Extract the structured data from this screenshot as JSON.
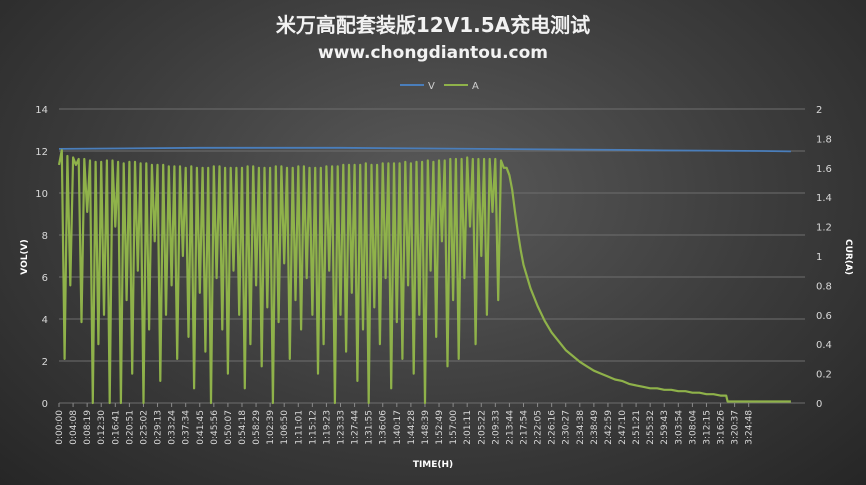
{
  "chart_data": {
    "type": "line",
    "title": "米万高配套装版12V1.5A充电测试",
    "subtitle": "www.chongdiantou.com",
    "xlabel": "TIME(H)",
    "ylabel_left": "VOL(V)",
    "ylabel_right": "CUR(A)",
    "ylim_left": [
      0,
      14
    ],
    "ylim_right": [
      0,
      2
    ],
    "yticks_left": [
      "0",
      "2",
      "4",
      "6",
      "8",
      "10",
      "12",
      "14"
    ],
    "yticks_right": [
      "0",
      "0.2",
      "0.4",
      "0.6",
      "0.8",
      "1",
      "1.2",
      "1.4",
      "1.6",
      "1.8",
      "2"
    ],
    "grid": true,
    "legend_position": "top-center",
    "x_tick_labels": [
      "0:00:00",
      "0:04:08",
      "0:08:19",
      "0:12:30",
      "0:16:41",
      "0:20:51",
      "0:25:02",
      "0:29:13",
      "0:33:24",
      "0:37:34",
      "0:41:45",
      "0:45:56",
      "0:50:07",
      "0:54:18",
      "0:58:29",
      "1:02:39",
      "1:06:50",
      "1:11:01",
      "1:15:12",
      "1:19:23",
      "1:23:33",
      "1:27:44",
      "1:31:55",
      "1:36:06",
      "1:40:17",
      "1:44:28",
      "1:48:39",
      "1:52:49",
      "1:57:00",
      "2:01:11",
      "2:05:22",
      "2:09:33",
      "2:13:44",
      "2:17:54",
      "2:22:05",
      "2:26:16",
      "2:30:27",
      "2:34:38",
      "2:38:49",
      "2:42:59",
      "2:47:10",
      "2:51:21",
      "2:55:32",
      "2:59:43",
      "3:03:54",
      "3:08:04",
      "3:12:15",
      "3:16:26",
      "3:20:37",
      "3:24:48"
    ],
    "series": [
      {
        "name": "V",
        "axis": "left",
        "color": "#4a7ebb",
        "x_index": [
          0,
          10,
          20,
          30,
          40,
          43,
          50,
          52
        ],
        "values": [
          12.1,
          12.15,
          12.15,
          12.1,
          12.05,
          12.03,
          12.0,
          11.98
        ]
      },
      {
        "name": "A",
        "axis": "right",
        "color": "#8fb24a",
        "x_index": [
          0.0,
          0.2,
          0.4,
          0.6,
          0.8,
          1.0,
          1.2,
          1.4,
          1.6,
          1.8,
          2.0,
          2.2,
          2.4,
          2.6,
          2.8,
          3.0,
          3.2,
          3.4,
          3.6,
          3.8,
          4.0,
          4.2,
          4.4,
          4.6,
          4.8,
          5.0,
          5.2,
          5.4,
          5.6,
          5.8,
          6.0,
          6.2,
          6.4,
          6.6,
          6.8,
          7.0,
          7.2,
          7.4,
          7.6,
          7.8,
          8.0,
          8.2,
          8.4,
          8.6,
          8.8,
          9.0,
          9.2,
          9.4,
          9.6,
          9.8,
          10.0,
          10.2,
          10.4,
          10.6,
          10.8,
          11.0,
          11.2,
          11.4,
          11.6,
          11.8,
          12.0,
          12.2,
          12.4,
          12.6,
          12.8,
          13.0,
          13.2,
          13.4,
          13.6,
          13.8,
          14.0,
          14.2,
          14.4,
          14.6,
          14.8,
          15.0,
          15.2,
          15.4,
          15.6,
          15.8,
          16.0,
          16.2,
          16.4,
          16.6,
          16.8,
          17.0,
          17.2,
          17.4,
          17.6,
          17.8,
          18.0,
          18.2,
          18.4,
          18.6,
          18.8,
          19.0,
          19.2,
          19.4,
          19.6,
          19.8,
          20.0,
          20.2,
          20.4,
          20.6,
          20.8,
          21.0,
          21.2,
          21.4,
          21.6,
          21.8,
          22.0,
          22.2,
          22.4,
          22.6,
          22.8,
          23.0,
          23.2,
          23.4,
          23.6,
          23.8,
          24.0,
          24.2,
          24.4,
          24.6,
          24.8,
          25.0,
          25.2,
          25.4,
          25.6,
          25.8,
          26.0,
          26.2,
          26.4,
          26.6,
          26.8,
          27.0,
          27.2,
          27.4,
          27.6,
          27.8,
          28.0,
          28.2,
          28.4,
          28.6,
          28.8,
          29.0,
          29.2,
          29.4,
          29.6,
          29.8,
          30.0,
          30.2,
          30.4,
          30.6,
          30.8,
          31.0,
          31.2,
          31.4,
          31.6,
          31.8,
          32.0,
          32.2,
          32.4,
          32.6,
          32.8,
          33.0,
          33.5,
          34.0,
          34.5,
          35.0,
          35.5,
          36.0,
          36.5,
          37.0,
          37.5,
          38.0,
          38.5,
          39.0,
          39.5,
          40.0,
          40.5,
          41.0,
          41.5,
          42.0,
          42.5,
          43.0,
          43.5,
          44.0,
          44.5,
          45.0,
          45.5,
          46.0,
          46.5,
          47.0,
          47.4,
          47.5,
          48.0,
          49.0,
          50.0,
          51.0,
          52.0
        ],
        "values": [
          1.62,
          1.72,
          0.3,
          1.68,
          0.8,
          1.67,
          1.62,
          1.66,
          0.55,
          1.66,
          1.3,
          1.65,
          0.0,
          1.64,
          0.4,
          1.64,
          0.6,
          1.65,
          0.0,
          1.65,
          1.2,
          1.64,
          0.0,
          1.63,
          0.7,
          1.64,
          0.2,
          1.64,
          0.9,
          1.63,
          0.0,
          1.63,
          0.5,
          1.62,
          1.1,
          1.62,
          0.15,
          1.62,
          0.6,
          1.61,
          0.8,
          1.61,
          0.3,
          1.61,
          1.0,
          1.6,
          0.45,
          1.61,
          0.1,
          1.6,
          0.75,
          1.6,
          0.35,
          1.6,
          0.0,
          1.61,
          0.85,
          1.61,
          0.5,
          1.6,
          0.2,
          1.6,
          0.9,
          1.6,
          0.6,
          1.6,
          0.1,
          1.61,
          0.4,
          1.61,
          0.8,
          1.6,
          0.25,
          1.6,
          0.65,
          1.6,
          0.0,
          1.61,
          0.55,
          1.61,
          0.95,
          1.6,
          0.3,
          1.6,
          0.7,
          1.61,
          0.5,
          1.61,
          0.85,
          1.6,
          0.6,
          1.6,
          0.2,
          1.6,
          0.4,
          1.61,
          0.9,
          1.61,
          0.0,
          1.61,
          0.6,
          1.62,
          0.35,
          1.62,
          0.75,
          1.62,
          0.15,
          1.62,
          0.5,
          1.63,
          0.0,
          1.62,
          0.65,
          1.62,
          0.4,
          1.63,
          0.85,
          1.63,
          0.1,
          1.63,
          0.55,
          1.63,
          0.3,
          1.64,
          0.8,
          1.63,
          0.2,
          1.64,
          0.6,
          1.64,
          0.0,
          1.65,
          0.9,
          1.64,
          0.45,
          1.65,
          1.1,
          1.65,
          0.25,
          1.66,
          0.7,
          1.66,
          0.3,
          1.66,
          0.85,
          1.67,
          1.2,
          1.66,
          0.4,
          1.66,
          1.0,
          1.66,
          0.6,
          1.66,
          1.3,
          1.66,
          0.7,
          1.65,
          1.6,
          1.6,
          1.55,
          1.45,
          1.3,
          1.16,
          1.04,
          0.94,
          0.78,
          0.66,
          0.56,
          0.48,
          0.42,
          0.36,
          0.32,
          0.28,
          0.25,
          0.22,
          0.2,
          0.18,
          0.16,
          0.15,
          0.13,
          0.12,
          0.11,
          0.1,
          0.1,
          0.09,
          0.09,
          0.08,
          0.08,
          0.07,
          0.07,
          0.06,
          0.06,
          0.05,
          0.05,
          0.01,
          0.01,
          0.01,
          0.01,
          0.01,
          0.01
        ]
      }
    ]
  },
  "legend": {
    "v_label": "V",
    "a_label": "A"
  }
}
